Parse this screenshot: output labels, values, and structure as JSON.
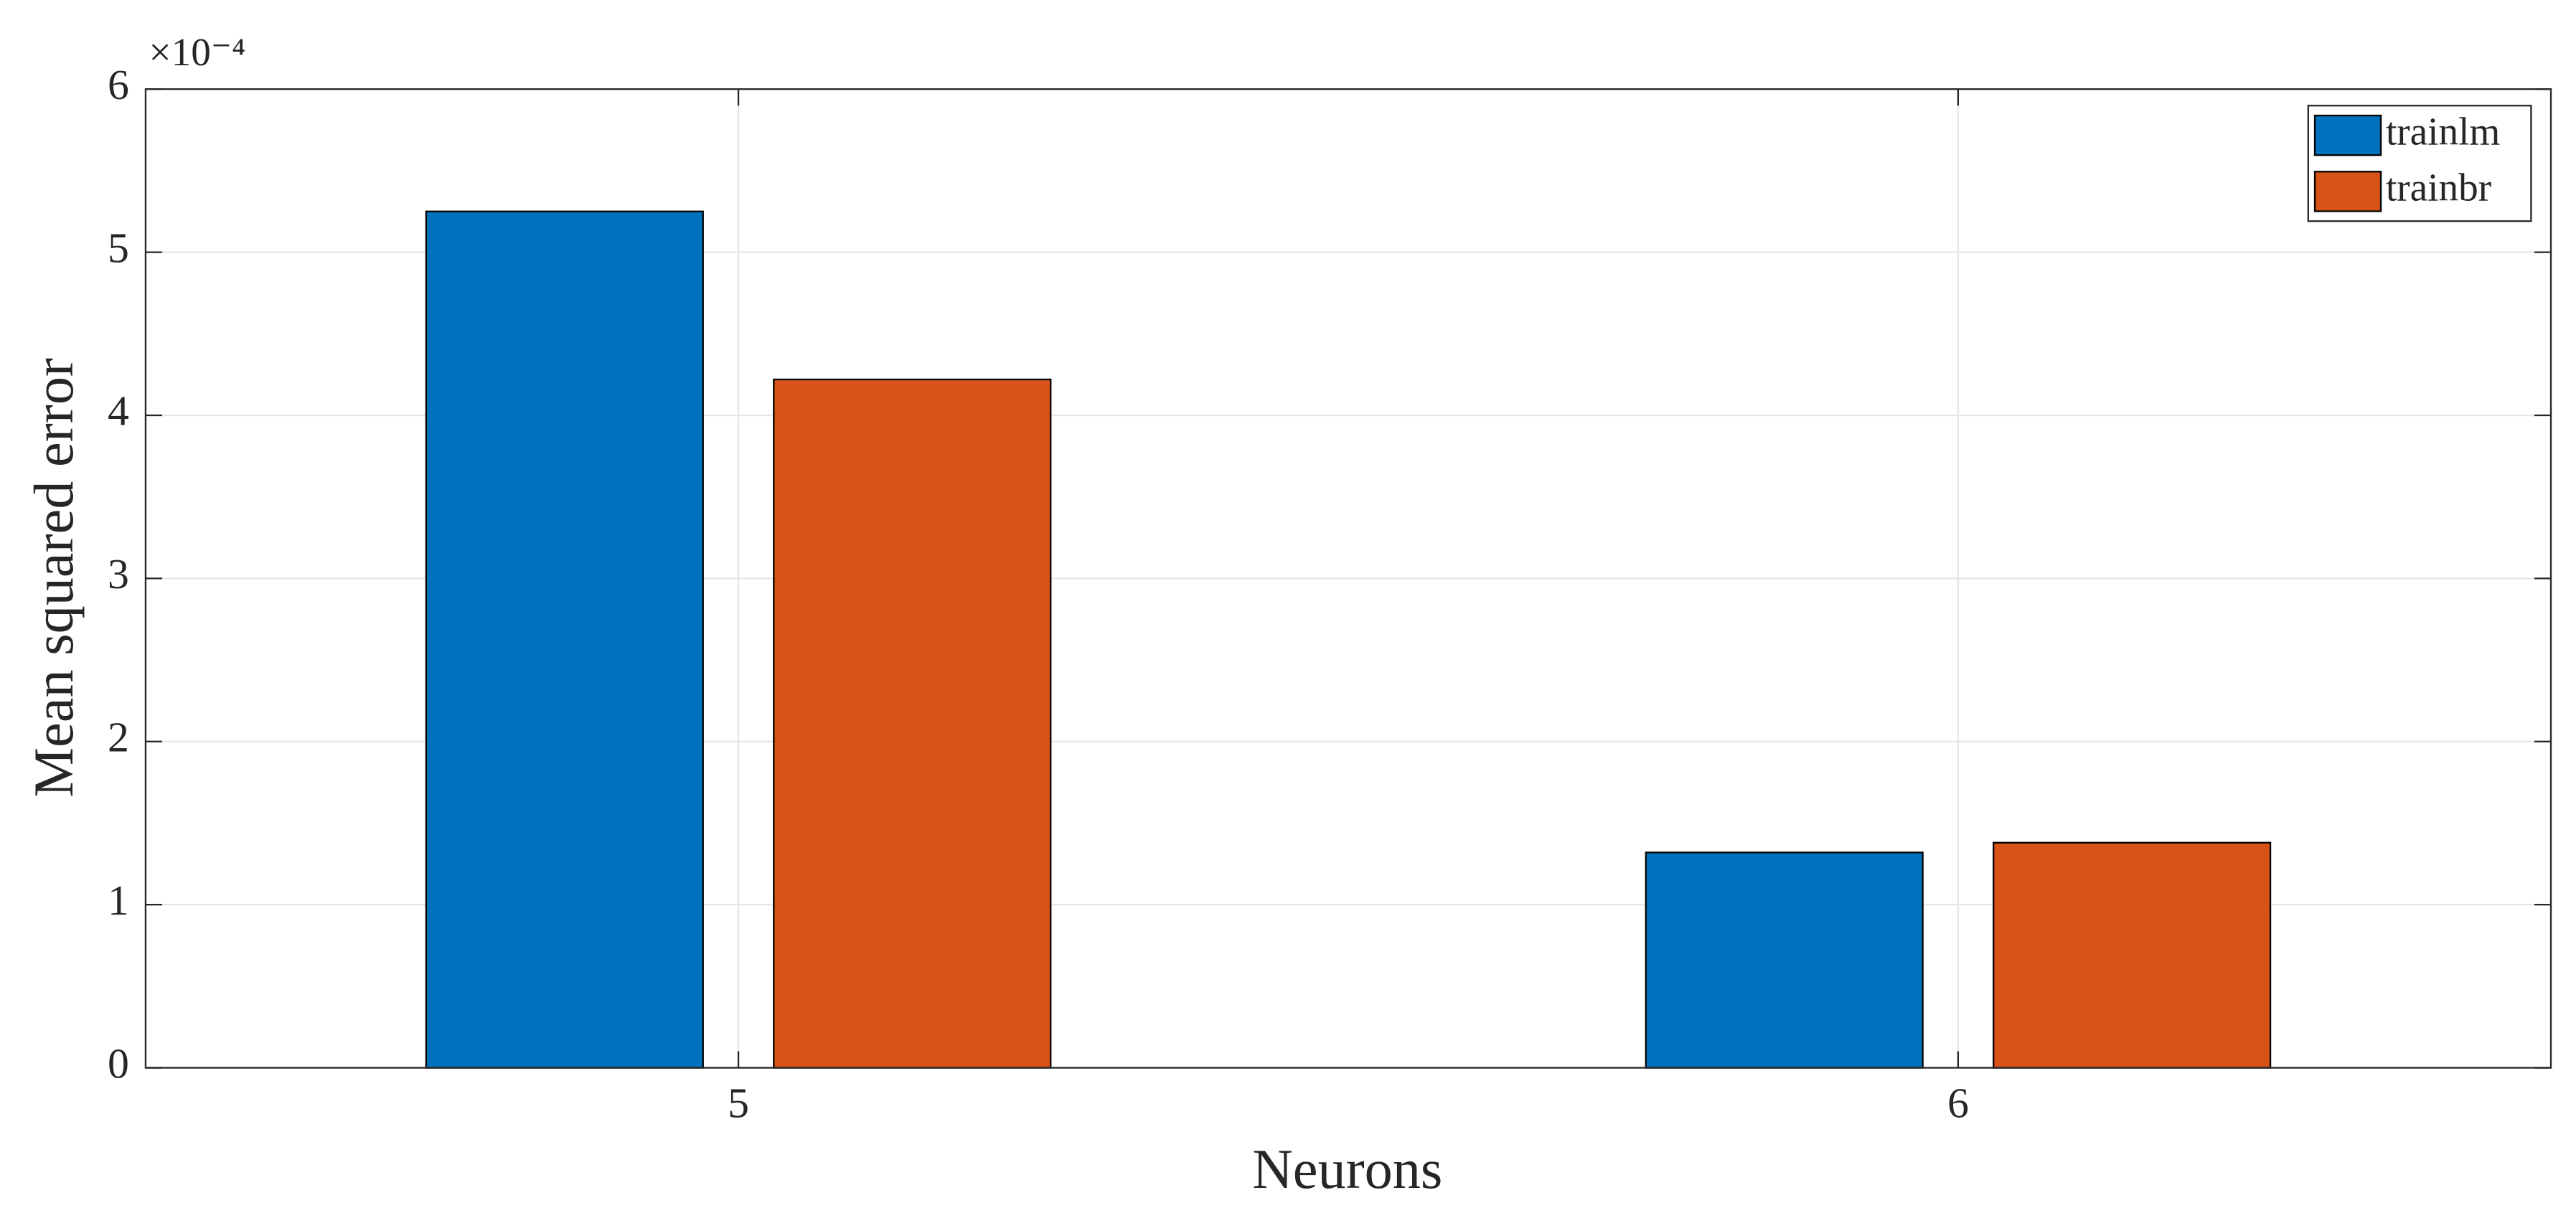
{
  "chart_data": {
    "type": "bar",
    "x_label": "Neurons",
    "y_label": "Mean squared error",
    "y_exponent_label": "×10⁻⁴",
    "x": [
      5,
      6
    ],
    "xlim": [
      4.514,
      6.486
    ],
    "xticks": [
      5,
      6
    ],
    "ylim": [
      0,
      6
    ],
    "yticks": [
      0,
      1,
      2,
      3,
      4,
      5,
      6
    ],
    "grid": true,
    "legend": "upper right",
    "series": [
      {
        "name": "trainlm",
        "color": "#0072bd",
        "values": [
          5.25,
          1.32
        ]
      },
      {
        "name": "trainbr",
        "color": "#d95319",
        "values": [
          4.22,
          1.38
        ]
      }
    ]
  }
}
